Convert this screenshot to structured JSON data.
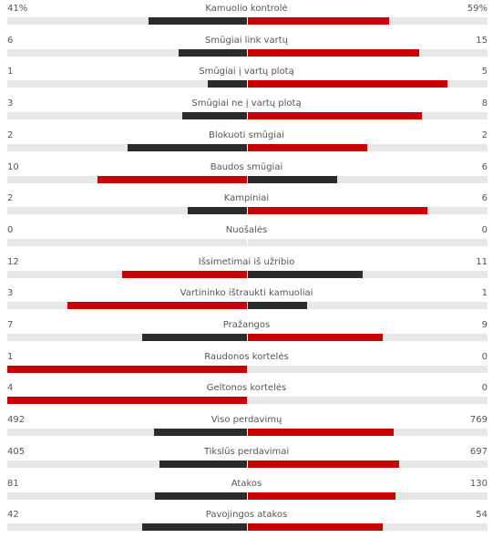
{
  "colors": {
    "dominant": "#c80000",
    "secondary": "#2b2b2b",
    "track": "#e7e7e7"
  },
  "stats": [
    {
      "name": "Kamuolio kontrolė",
      "left": "41%",
      "right": "59%",
      "lv": 41,
      "rv": 59
    },
    {
      "name": "Smūgiai link vartų",
      "left": "6",
      "right": "15",
      "lv": 6,
      "rv": 15
    },
    {
      "name": "Smūgiai į vartų plotą",
      "left": "1",
      "right": "5",
      "lv": 1,
      "rv": 5
    },
    {
      "name": "Smūgiai ne į vartų plotą",
      "left": "3",
      "right": "8",
      "lv": 3,
      "rv": 8
    },
    {
      "name": "Blokuoti smūgiai",
      "left": "2",
      "right": "2",
      "lv": 2,
      "rv": 2
    },
    {
      "name": "Baudos smūgiai",
      "left": "10",
      "right": "6",
      "lv": 10,
      "rv": 6
    },
    {
      "name": "Kampiniai",
      "left": "2",
      "right": "6",
      "lv": 2,
      "rv": 6
    },
    {
      "name": "Nuošalės",
      "left": "0",
      "right": "0",
      "lv": 0,
      "rv": 0
    },
    {
      "name": "Išsimetimai iš užribio",
      "left": "12",
      "right": "11",
      "lv": 12,
      "rv": 11
    },
    {
      "name": "Vartininko ištraukti kamuoliai",
      "left": "3",
      "right": "1",
      "lv": 3,
      "rv": 1
    },
    {
      "name": "Pražangos",
      "left": "7",
      "right": "9",
      "lv": 7,
      "rv": 9
    },
    {
      "name": "Raudonos kortelės",
      "left": "1",
      "right": "0",
      "lv": 1,
      "rv": 0
    },
    {
      "name": "Geltonos kortelės",
      "left": "4",
      "right": "0",
      "lv": 4,
      "rv": 0
    },
    {
      "name": "Viso perdavimų",
      "left": "492",
      "right": "769",
      "lv": 492,
      "rv": 769
    },
    {
      "name": "Tikslūs perdavimai",
      "left": "405",
      "right": "697",
      "lv": 405,
      "rv": 697
    },
    {
      "name": "Atakos",
      "left": "81",
      "right": "130",
      "lv": 81,
      "rv": 130
    },
    {
      "name": "Pavojingos atakos",
      "left": "42",
      "right": "54",
      "lv": 42,
      "rv": 54
    }
  ]
}
